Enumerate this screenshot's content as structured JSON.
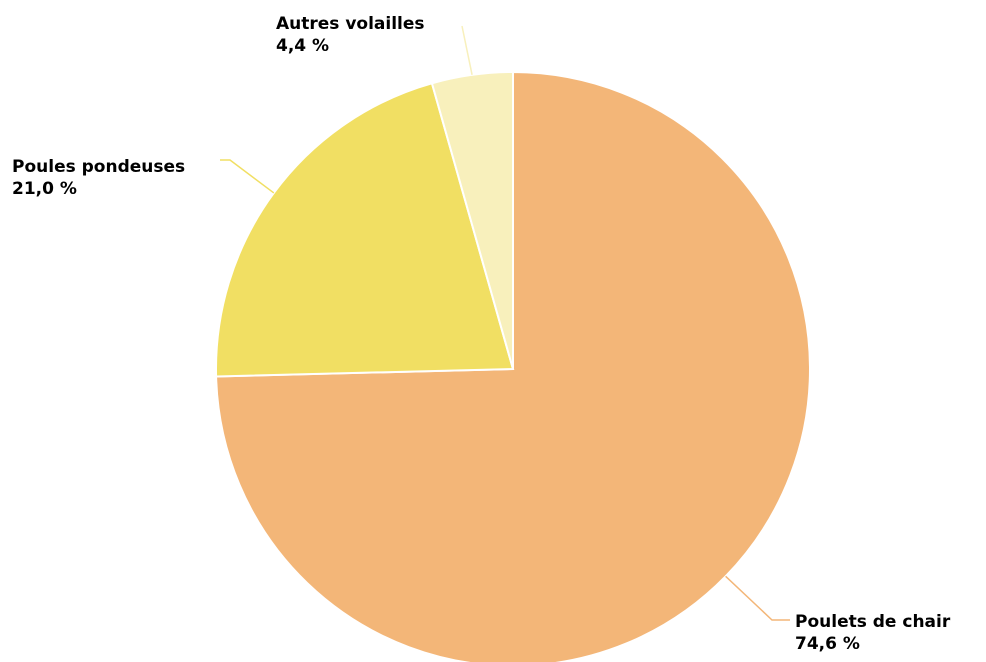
{
  "chart_data": {
    "type": "pie",
    "title": "",
    "slices": [
      {
        "name": "Poulets de chair",
        "value": 74.6,
        "value_label": "74,6 %",
        "color": "#F3B678",
        "leader_color": "#F3B678"
      },
      {
        "name": "Poules pondeuses",
        "value": 21.0,
        "value_label": "21,0 %",
        "color": "#F1DF63",
        "leader_color": "#F1DF63"
      },
      {
        "name": "Autres volailles",
        "value": 4.4,
        "value_label": "4,4 %",
        "color": "#F8F0BC",
        "leader_color": "#F8F0BC"
      }
    ],
    "start_angle_deg": 0,
    "direction": "clockwise",
    "legend": "none",
    "background": "#ffffff"
  }
}
